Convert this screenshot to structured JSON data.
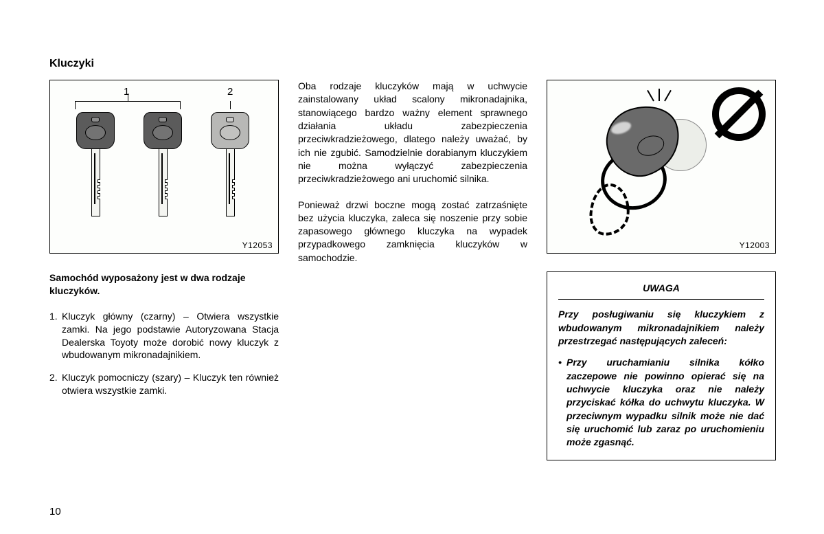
{
  "title": "Kluczyki",
  "page_number": "10",
  "figure1": {
    "label1": "1",
    "label2": "2",
    "code": "Y12053",
    "key_colors": [
      "#5b5b5b",
      "#5b5b5b",
      "#b8b8b6"
    ]
  },
  "figure2": {
    "code": "Y12003"
  },
  "col1": {
    "lead": "Samochód wyposażony jest w dwa rodzaje kluczyków.",
    "items": [
      {
        "n": "1.",
        "t": "Kluczyk główny (czarny) – Otwiera wszystkie zamki. Na jego podstawie Autoryzowana Stacja Dealerska Toyoty może dorobić nowy kluczyk z wbudowanym mikronadajnikiem."
      },
      {
        "n": "2.",
        "t": "Kluczyk pomocniczy (szary) – Kluczyk ten również otwiera wszystkie zamki."
      }
    ]
  },
  "col2": {
    "p1": "Oba rodzaje kluczyków mają w uchwycie zainstalowany układ scalony mikronadajnika, stanowiącego bardzo ważny element sprawnego działania układu zabezpieczenia przeciwkradzieżowego, dlatego należy uważać, by ich nie zgubić. Samodzielnie dorabianym kluczykiem nie można wyłączyć zabezpieczenia przeciwkradzieżowego ani uruchomić silnika.",
    "p2": "Ponieważ drzwi boczne mogą zostać zatrzaśnięte bez użycia kluczyka, zaleca się noszenie przy sobie zapasowego głównego kluczyka na wypadek przypadkowego zamknięcia kluczyków w samochodzie."
  },
  "notice": {
    "title": "UWAGA",
    "lead": "Przy posługiwaniu się kluczykiem z wbudowanym mikronadajnikiem należy przestrzegać następujących zaleceń:",
    "bullet": "Przy uruchamianiu silnika kółko zaczepowe nie powinno opierać się na uchwycie kluczyka oraz nie należy przyciskać kółka do uchwytu kluczyka. W przeciwnym wypadku silnik może nie dać się uruchomić lub zaraz po uruchomieniu może zgasnąć."
  }
}
